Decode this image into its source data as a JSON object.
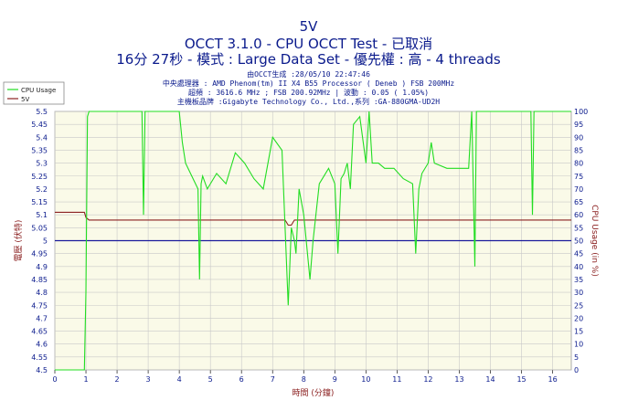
{
  "header": {
    "title": "5V",
    "subtitle": "OCCT 3.1.0 - CPU OCCT Test - 已取消",
    "test_info": "16分 27秒 - 模式 : Large Data Set - 優先權 : 高 - 4 threads",
    "info_lines": [
      "由OCCT生成 :28/05/10 22:47:46",
      "中央處理器 : AMD Phenom(tm) II X4 B55 Processor ( Deneb ) FSB 200MHz",
      "超頻 : 3616.6 MHz ; FSB 200.92MHz | 波動 : 0.05 ( 1.05%)",
      "主機板品牌 :Gigabyte Technology Co., Ltd.,系列 :GA-880GMA-UD2H"
    ]
  },
  "colors": {
    "cpu_usage": "#22dd22",
    "voltage_5v": "#8b2020",
    "reference_line": "#1a1a9c",
    "plot_bg": "#fafae8",
    "grid": "#c8c8c8",
    "text_blue": "#0a1a8c",
    "text_red": "#8b2020"
  },
  "chart_data": {
    "type": "line",
    "xlabel": "時間 (分鐘)",
    "ylabel_left": "電壓 (伏特)",
    "ylabel_right": "CPU Usage (in %)",
    "xlim": [
      0,
      16.6
    ],
    "ylim_left": [
      4.5,
      5.5
    ],
    "ylim_right": [
      0,
      100
    ],
    "x_ticks": [
      0,
      1,
      2,
      3,
      4,
      5,
      6,
      7,
      8,
      9,
      10,
      11,
      12,
      13,
      14,
      15,
      16
    ],
    "y_ticks_left": [
      4.5,
      4.55,
      4.6,
      4.65,
      4.7,
      4.75,
      4.8,
      4.85,
      4.9,
      4.95,
      5,
      5.05,
      5.1,
      5.15,
      5.2,
      5.25,
      5.3,
      5.35,
      5.4,
      5.45,
      5.5
    ],
    "y_ticks_right": [
      0,
      5,
      10,
      15,
      20,
      25,
      30,
      35,
      40,
      45,
      50,
      55,
      60,
      65,
      70,
      75,
      80,
      85,
      90,
      95,
      100
    ],
    "legend": [
      "CPU Usage",
      "5V"
    ],
    "legend_position": "top-left",
    "grid": true,
    "reference_value": 5.0,
    "series": [
      {
        "name": "5V",
        "axis": "left",
        "x": [
          0,
          0.95,
          1.0,
          1.1,
          1.2,
          7.4,
          7.5,
          7.6,
          7.7,
          7.8,
          16.6
        ],
        "values": [
          5.11,
          5.11,
          5.09,
          5.08,
          5.08,
          5.08,
          5.06,
          5.06,
          5.08,
          5.08,
          5.08
        ]
      },
      {
        "name": "CPU Usage",
        "axis": "right",
        "x": [
          0,
          0.95,
          1.0,
          1.05,
          1.1,
          2.8,
          2.85,
          2.9,
          4.0,
          4.1,
          4.2,
          4.4,
          4.6,
          4.65,
          4.7,
          4.75,
          4.9,
          5.2,
          5.5,
          5.8,
          6.1,
          6.4,
          6.7,
          7.0,
          7.3,
          7.5,
          7.6,
          7.7,
          7.75,
          7.85,
          8.0,
          8.2,
          8.3,
          8.5,
          8.8,
          9.0,
          9.1,
          9.2,
          9.3,
          9.4,
          9.5,
          9.6,
          9.8,
          10.0,
          10.1,
          10.2,
          10.4,
          10.6,
          10.9,
          11.2,
          11.5,
          11.6,
          11.7,
          11.8,
          12.0,
          12.1,
          12.2,
          12.6,
          13.1,
          13.3,
          13.4,
          13.5,
          13.55,
          13.6,
          13.8,
          14.1,
          14.5,
          15.0,
          15.3,
          15.35,
          15.4,
          15.6,
          16.0,
          16.6
        ],
        "values": [
          0,
          0,
          30,
          98,
          100,
          100,
          60,
          100,
          100,
          88,
          80,
          75,
          70,
          35,
          72,
          75,
          70,
          76,
          72,
          84,
          80,
          74,
          70,
          90,
          85,
          25,
          55,
          50,
          45,
          70,
          60,
          35,
          50,
          72,
          78,
          72,
          45,
          74,
          76,
          80,
          70,
          95,
          98,
          80,
          100,
          80,
          80,
          78,
          78,
          74,
          72,
          45,
          70,
          76,
          80,
          88,
          80,
          78,
          78,
          78,
          100,
          40,
          100,
          100,
          100,
          100,
          100,
          100,
          100,
          60,
          100,
          100,
          100,
          100
        ]
      }
    ]
  }
}
